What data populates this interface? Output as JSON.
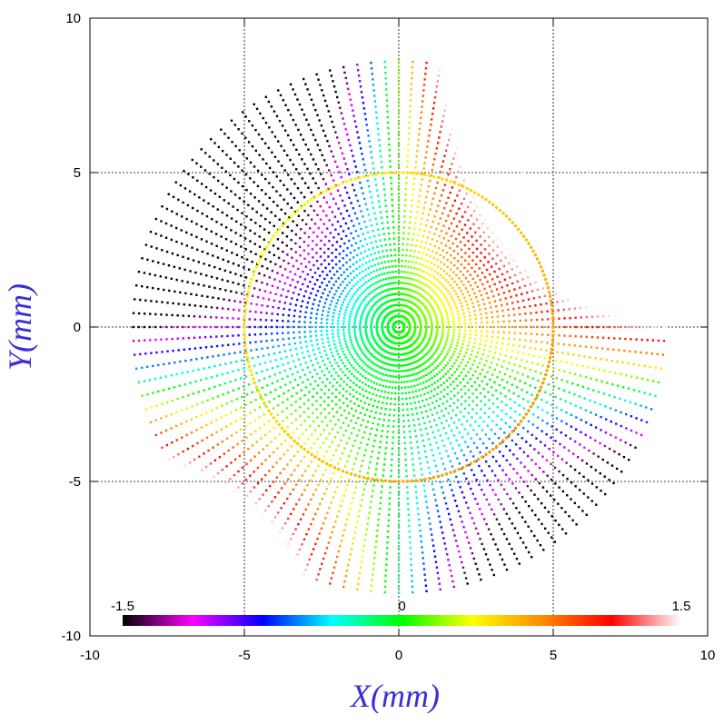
{
  "chart_data": {
    "type": "scatter",
    "title": "",
    "xlabel": "X(mm)",
    "ylabel": "Y(mm)",
    "xlim": [
      -10,
      10
    ],
    "ylim": [
      -10,
      10
    ],
    "xticks": [
      "-10",
      "-5",
      "0",
      "5",
      "10"
    ],
    "yticks": [
      "-10",
      "-5",
      "0",
      "5",
      "10"
    ],
    "grid": true,
    "grid_lines_at": [
      -5,
      0,
      5
    ],
    "pattern": {
      "description": "radial spokes of points colored by value",
      "spoke_count": 120,
      "max_radius_mm": 8.6,
      "points_per_spoke": 48,
      "ring_radius_mm": 5.0,
      "ring_value": 0.55
    },
    "colorbar": {
      "min": -1.5,
      "max": 1.5,
      "labels": [
        "-1.5",
        "0",
        "1.5"
      ],
      "placement": "bottom-inside",
      "colormap": [
        "#000000",
        "#ff00ff",
        "#0000ff",
        "#00ffff",
        "#00ff00",
        "#ffff00",
        "#ff8c00",
        "#ff0000",
        "#ffffff"
      ]
    }
  }
}
